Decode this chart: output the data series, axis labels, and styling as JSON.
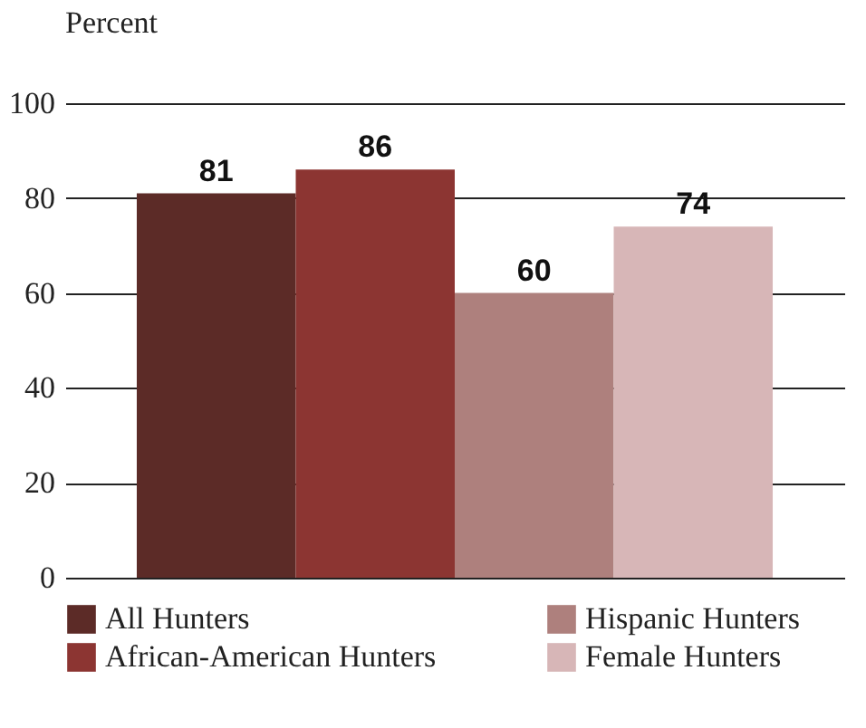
{
  "chart_data": {
    "type": "bar",
    "ylabel": "Percent",
    "categories": [
      null
    ],
    "series": [
      {
        "name": "All Hunters",
        "color": "#5c2b27",
        "values": [
          81
        ]
      },
      {
        "name": "African-American Hunters",
        "color": "#8c3532",
        "values": [
          86
        ]
      },
      {
        "name": "Hispanic Hunters",
        "color": "#ae807d",
        "values": [
          60
        ]
      },
      {
        "name": "Female Hunters",
        "color": "#d7b6b7",
        "values": [
          74
        ]
      }
    ],
    "ylim": [
      0,
      100
    ],
    "yticks": [
      0,
      20,
      40,
      60,
      80,
      100
    ],
    "grid": "y",
    "legend": "bottom",
    "data_labels": true
  }
}
